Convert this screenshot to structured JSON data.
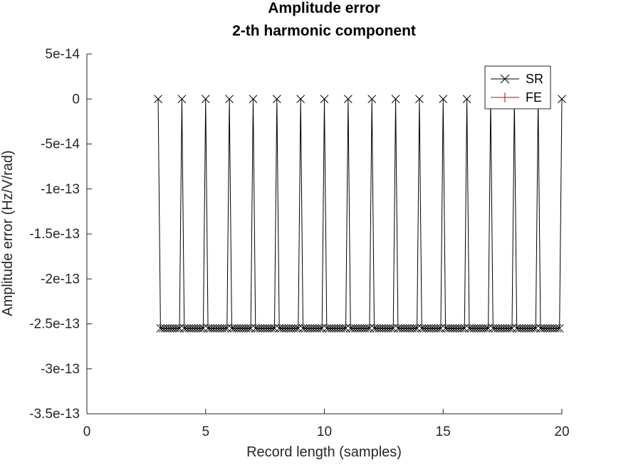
{
  "chart_data": {
    "type": "line",
    "title": "Amplitude error",
    "subtitle": "2-th harmonic component",
    "xlabel": "Record length (samples)",
    "ylabel": "Amplitude error (Hz/V/rad)",
    "xlim": [
      0,
      20
    ],
    "ylim": [
      -3.5e-13,
      5e-14
    ],
    "x_ticks": [
      0,
      5,
      10,
      15,
      20
    ],
    "x_tick_labels": [
      "0",
      "5",
      "10",
      "15",
      "20"
    ],
    "y_ticks": [
      5e-14,
      0,
      -5e-14,
      -1e-13,
      -1.5e-13,
      -2e-13,
      -2.5e-13,
      -3e-13,
      -3.5e-13
    ],
    "y_tick_labels": [
      "5e-14",
      "0",
      "-5e-14",
      "-1e-13",
      "-1.5e-13",
      "-2e-13",
      "-2.5e-13",
      "-3e-13",
      "-3.5e-13"
    ],
    "grid": false,
    "legend": {
      "placement": "top-right",
      "entries": [
        "SR",
        "FE"
      ]
    },
    "series": [
      {
        "name": "SR",
        "color": "#000000",
        "marker": "x",
        "x_start": 3,
        "x_end": 20,
        "x_step": 0.1,
        "value_at_integer_x": 0,
        "value_otherwise": -2.55e-13
      },
      {
        "name": "FE",
        "color": "#cc0000",
        "marker": "+",
        "x": [],
        "y": []
      }
    ]
  }
}
